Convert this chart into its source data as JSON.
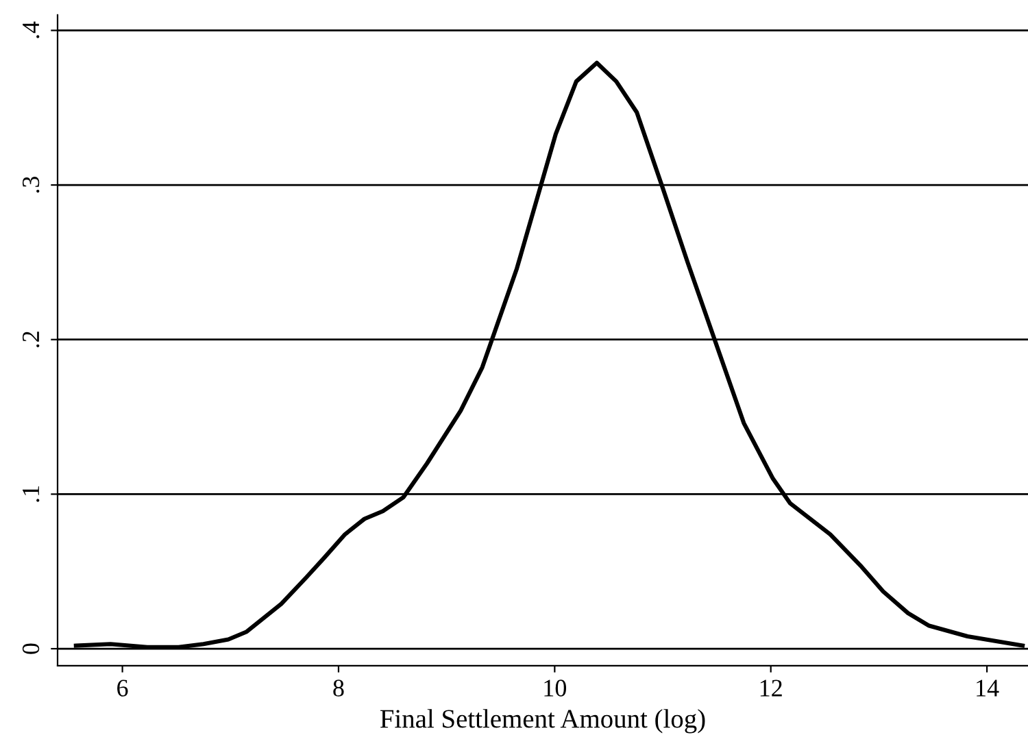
{
  "chart_data": {
    "type": "line",
    "xlabel": "Final Settlement Amount (log)",
    "x": [
      5.57,
      5.89,
      6.23,
      6.52,
      6.75,
      6.98,
      7.15,
      7.47,
      7.7,
      7.87,
      8.06,
      8.24,
      8.41,
      8.6,
      8.82,
      9.13,
      9.33,
      9.65,
      10.01,
      10.2,
      10.39,
      10.57,
      10.76,
      11.0,
      11.23,
      11.48,
      11.75,
      12.02,
      12.18,
      12.55,
      12.84,
      13.04,
      13.27,
      13.46,
      13.82,
      13.99,
      14.33
    ],
    "series": [
      {
        "color": "#000000",
        "values": [
          0.002,
          0.003,
          0.001,
          0.001,
          0.003,
          0.006,
          0.011,
          0.029,
          0.046,
          0.059,
          0.074,
          0.084,
          0.089,
          0.098,
          0.12,
          0.154,
          0.182,
          0.246,
          0.333,
          0.367,
          0.379,
          0.367,
          0.347,
          0.298,
          0.25,
          0.2,
          0.146,
          0.11,
          0.094,
          0.074,
          0.053,
          0.037,
          0.023,
          0.015,
          0.008,
          0.006,
          0.002
        ]
      }
    ],
    "xlim": [
      5.4,
      14.38
    ],
    "ylim": [
      -0.011,
      0.41
    ],
    "xticks": [
      6,
      8,
      10,
      12,
      14
    ],
    "yticks": [
      {
        "value": 0,
        "label": "0"
      },
      {
        "value": 0.1,
        "label": ".1"
      },
      {
        "value": 0.2,
        "label": ".2"
      },
      {
        "value": 0.3,
        "label": ".3"
      },
      {
        "value": 0.4,
        "label": ".4"
      }
    ],
    "grid": "y",
    "marker": "none",
    "line_style": "solid"
  }
}
